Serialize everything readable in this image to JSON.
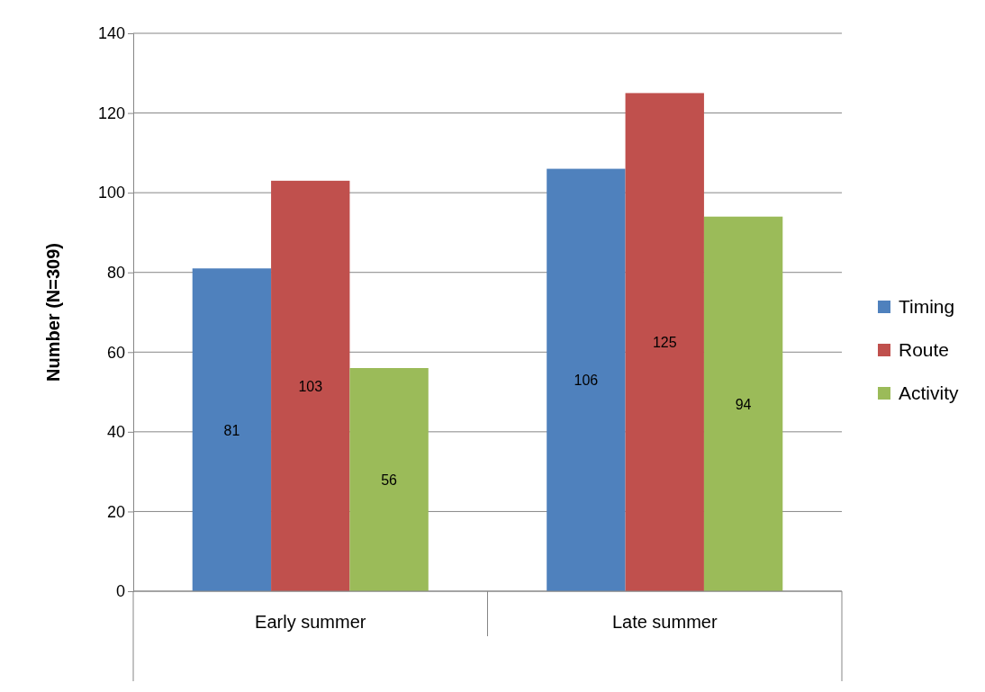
{
  "chart_data": {
    "type": "bar",
    "ylabel": "Number (N=309)",
    "categories": [
      "Early summer",
      "Late summer"
    ],
    "series": [
      {
        "name": "Timing",
        "color": "#4f81bd",
        "values": [
          81,
          106
        ]
      },
      {
        "name": "Route",
        "color": "#c0504d",
        "values": [
          103,
          125
        ]
      },
      {
        "name": "Activity",
        "color": "#9bbb59",
        "values": [
          56,
          94
        ]
      }
    ],
    "ylim": [
      0,
      140
    ],
    "yticks": [
      0,
      20,
      40,
      60,
      80,
      100,
      120,
      140
    ],
    "grid": "y",
    "legend": "right",
    "data_labels": true
  }
}
